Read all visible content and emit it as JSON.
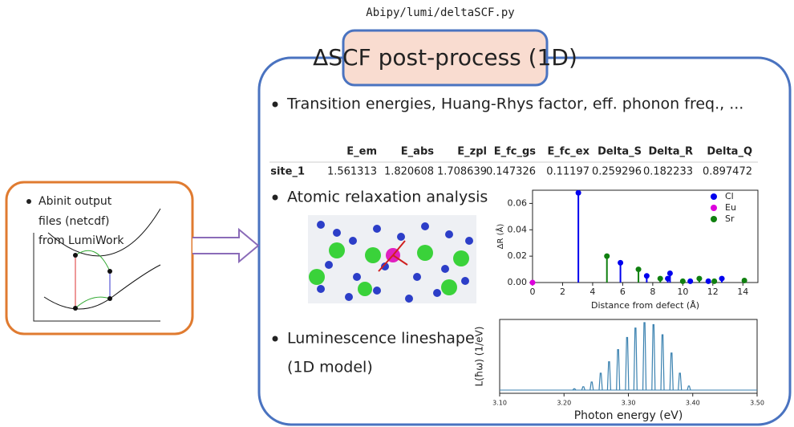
{
  "header": {
    "path": "Abipy/lumi/deltaSCF.py",
    "title": "ΔSCF post-process (1D)"
  },
  "left_box": {
    "lines": [
      "Abinit output",
      "files (netcdf)",
      "from LumiWork"
    ]
  },
  "bullets": [
    {
      "lines": [
        "Transition energies, Huang-Rhys factor, eff. phonon freq., ..."
      ]
    },
    {
      "lines": [
        "Atomic relaxation analysis"
      ]
    },
    {
      "lines": [
        "Luminescence lineshape",
        "(1D model)"
      ]
    }
  ],
  "table": {
    "columns": [
      "E_em",
      "E_abs",
      "E_zpl",
      "E_fc_gs",
      "E_fc_ex",
      "Delta_S",
      "Delta_R",
      "Delta_Q"
    ],
    "rows": [
      [
        "site_1",
        "1.561313",
        "1.820608",
        "1.708639",
        "0.147326",
        "0.11197",
        "0.259296",
        "0.182233",
        "0.897472"
      ]
    ]
  },
  "chart_data": [
    {
      "type": "stem",
      "ylabel": "ΔR (Å)",
      "xlabel": "Distance from defect (Å)",
      "xlim": [
        0,
        15
      ],
      "xticks": [
        0,
        2,
        4,
        6,
        8,
        10,
        12,
        14
      ],
      "ylim": [
        0,
        0.07
      ],
      "yticks": [
        {
          "value": 0,
          "label": "0.00"
        },
        0.02,
        0.04,
        0.06
      ],
      "legend": "upper right",
      "series": [
        {
          "name": "Cl",
          "color": "#0000ee",
          "x": [
            3.05,
            5.85,
            7.6,
            9.0,
            9.15,
            10.5,
            11.7,
            12.6
          ],
          "values": [
            0.068,
            0.015,
            0.005,
            0.003,
            0.007,
            0.001,
            0.001,
            0.003
          ]
        },
        {
          "name": "Eu",
          "color": "#dd00dd",
          "x": [
            0
          ],
          "values": [
            0
          ]
        },
        {
          "name": "Sr",
          "color": "#108010",
          "x": [
            4.95,
            7.05,
            8.5,
            10.0,
            11.1,
            12.1,
            14.1
          ],
          "values": [
            0.02,
            0.01,
            0.003,
            0.001,
            0.003,
            0.001,
            0.0015
          ]
        }
      ]
    },
    {
      "type": "peaks",
      "ylabel": "L(ħω) (1/eV)",
      "xlabel": "Photon energy (eV)",
      "xlim": [
        3.1,
        3.5
      ],
      "xticks": [
        {
          "value": 3.1,
          "label": "3.10"
        },
        {
          "value": 3.2,
          "label": "3.20"
        },
        {
          "value": 3.3,
          "label": "3.30"
        },
        {
          "value": 3.4,
          "label": "3.40"
        },
        {
          "value": 3.5,
          "label": "3.50"
        }
      ],
      "ylim": [
        0,
        1
      ],
      "color": "#3b82b0",
      "x": [
        3.216,
        3.23,
        3.243,
        3.257,
        3.27,
        3.284,
        3.298,
        3.311,
        3.325,
        3.339,
        3.353,
        3.367,
        3.38,
        3.394
      ],
      "values": [
        0.02,
        0.05,
        0.12,
        0.25,
        0.42,
        0.6,
        0.78,
        0.92,
        1.0,
        0.97,
        0.82,
        0.55,
        0.25,
        0.06
      ]
    }
  ]
}
